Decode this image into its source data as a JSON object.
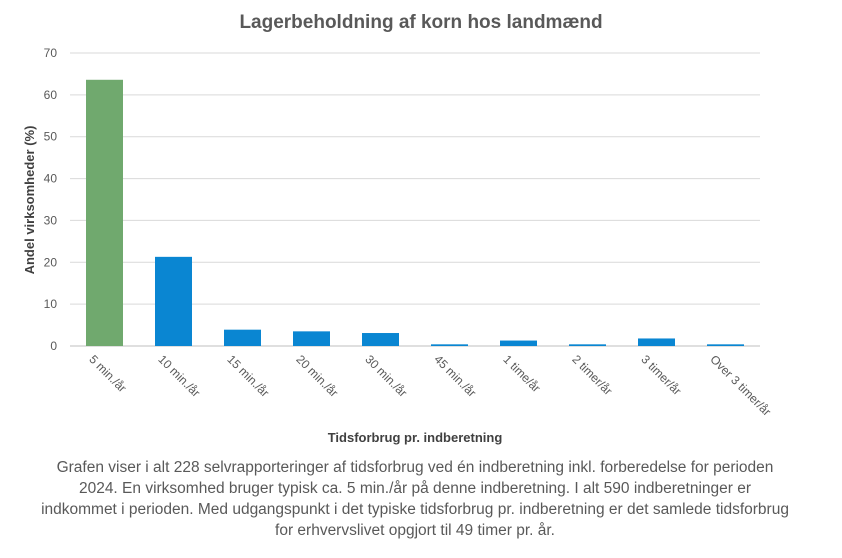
{
  "chart_data": {
    "type": "bar",
    "title": "Lagerbeholdning af korn hos landmænd",
    "xlabel": "Tidsforbrug pr. indberetning",
    "ylabel": "Andel virksomheder  (%)",
    "categories": [
      "5 min./år",
      "10 min./år",
      "15 min./år",
      "20 min./år",
      "30 min./år",
      "45 min./år",
      "1 time/år",
      "2 timer/år",
      "3 timer/år",
      "Over 3 timer/år"
    ],
    "values": [
      63.6,
      21.3,
      3.9,
      3.5,
      3.1,
      0.4,
      1.3,
      0.4,
      1.8,
      0.4
    ],
    "bar_colors": [
      "#70a96e",
      "#0a86d2",
      "#0a86d2",
      "#0a86d2",
      "#0a86d2",
      "#0a86d2",
      "#0a86d2",
      "#0a86d2",
      "#0a86d2",
      "#0a86d2"
    ],
    "ylim": [
      0,
      70
    ],
    "yticks": [
      0,
      10,
      20,
      30,
      40,
      50,
      60,
      70
    ],
    "grid": true,
    "legend": "none"
  },
  "caption": "Grafen viser i alt 228 selvrapporteringer  af tidsforbrug ved én indberetning inkl. forberedelse for perioden 2024. En virksomhed bruger typisk ca. 5 min./år på denne indberetning.  I alt 590 indberetninger  er indkommet i perioden.  Med udgangspunkt i det typiske tidsforbrug pr. indberetning  er det samlede tidsforbrug for erhvervslivet opgjort til 49 timer pr. år.",
  "colors": {
    "grid": "#d9d9d9",
    "axis": "#bfbfbf",
    "text": "#595959"
  }
}
